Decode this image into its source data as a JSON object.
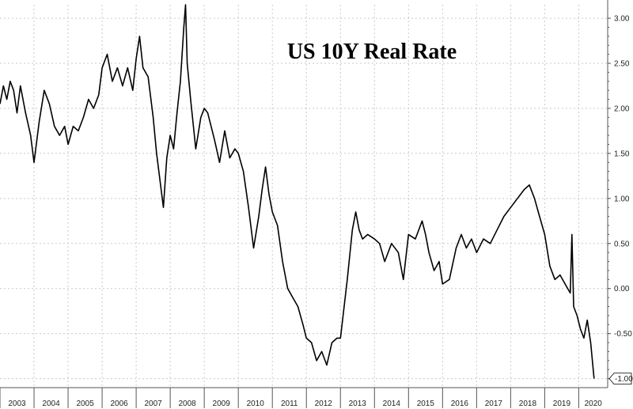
{
  "chart_data": {
    "type": "line",
    "title": "US 10Y Real Rate",
    "xlabel": "",
    "ylabel": "",
    "ylim": [
      -1.0,
      3.0
    ],
    "yticks": [
      3.0,
      2.5,
      2.0,
      1.5,
      1.0,
      0.5,
      0.0,
      -0.5,
      -1.0
    ],
    "ytick_labels": [
      "3.00",
      "2.50",
      "2.00",
      "1.50",
      "1.00",
      "0.50",
      "0.00",
      "-0.50",
      "-1.00"
    ],
    "xtick_labels": [
      "2003",
      "2004",
      "2005",
      "2006",
      "2007",
      "2008",
      "2009",
      "2010",
      "2011",
      "2012",
      "2013",
      "2014",
      "2015",
      "2016",
      "2017",
      "2018",
      "2019",
      "2020"
    ],
    "grid": true,
    "y_axis_side": "right",
    "last_value_label": "-1.00",
    "series": [
      {
        "x": [
          2003.0,
          2003.1,
          2003.2,
          2003.3,
          2003.4,
          2003.5,
          2003.6,
          2003.75,
          2003.9,
          2004.0,
          2004.15,
          2004.3,
          2004.45,
          2004.6,
          2004.75,
          2004.9,
          2005.0,
          2005.15,
          2005.3,
          2005.45,
          2005.6,
          2005.75,
          2005.9,
          2006.0,
          2006.15,
          2006.3,
          2006.45,
          2006.6,
          2006.75,
          2006.9,
          2007.0,
          2007.1,
          2007.2,
          2007.35,
          2007.5,
          2007.6,
          2007.7,
          2007.8,
          2007.9,
          2008.0,
          2008.1,
          2008.2,
          2008.3,
          2008.4,
          2008.45,
          2008.5,
          2008.6,
          2008.75,
          2008.9,
          2009.0,
          2009.1,
          2009.2,
          2009.3,
          2009.45,
          2009.6,
          2009.75,
          2009.9,
          2010.0,
          2010.15,
          2010.3,
          2010.45,
          2010.6,
          2010.7,
          2010.8,
          2010.9,
          2011.0,
          2011.15,
          2011.3,
          2011.45,
          2011.6,
          2011.75,
          2011.9,
          2012.0,
          2012.15,
          2012.3,
          2012.45,
          2012.6,
          2012.75,
          2012.9,
          2013.0,
          2013.2,
          2013.35,
          2013.45,
          2013.55,
          2013.65,
          2013.8,
          2014.0,
          2014.15,
          2014.3,
          2014.5,
          2014.7,
          2014.85,
          2015.0,
          2015.2,
          2015.4,
          2015.5,
          2015.6,
          2015.75,
          2015.9,
          2016.0,
          2016.2,
          2016.4,
          2016.55,
          2016.7,
          2016.85,
          2017.0,
          2017.2,
          2017.4,
          2017.6,
          2017.8,
          2018.0,
          2018.2,
          2018.4,
          2018.55,
          2018.7,
          2018.85,
          2019.0,
          2019.15,
          2019.3,
          2019.45,
          2019.6,
          2019.75,
          2019.8,
          2019.85,
          2019.95,
          2020.05,
          2020.15,
          2020.25,
          2020.35,
          2020.45
        ],
        "y": [
          2.05,
          2.25,
          2.1,
          2.3,
          2.2,
          1.95,
          2.25,
          1.95,
          1.7,
          1.4,
          1.85,
          2.2,
          2.05,
          1.8,
          1.7,
          1.8,
          1.6,
          1.8,
          1.75,
          1.9,
          2.1,
          2.0,
          2.15,
          2.45,
          2.6,
          2.3,
          2.45,
          2.25,
          2.45,
          2.2,
          2.55,
          2.8,
          2.45,
          2.35,
          1.9,
          1.5,
          1.2,
          0.9,
          1.45,
          1.7,
          1.55,
          1.95,
          2.3,
          2.9,
          3.15,
          2.5,
          2.1,
          1.55,
          1.9,
          2.0,
          1.95,
          1.8,
          1.65,
          1.4,
          1.75,
          1.45,
          1.55,
          1.5,
          1.3,
          0.9,
          0.45,
          0.8,
          1.1,
          1.35,
          1.05,
          0.85,
          0.7,
          0.3,
          0.0,
          -0.1,
          -0.2,
          -0.4,
          -0.55,
          -0.6,
          -0.8,
          -0.7,
          -0.85,
          -0.6,
          -0.55,
          -0.55,
          0.1,
          0.65,
          0.85,
          0.65,
          0.55,
          0.6,
          0.55,
          0.5,
          0.3,
          0.5,
          0.4,
          0.1,
          0.6,
          0.55,
          0.75,
          0.6,
          0.4,
          0.2,
          0.3,
          0.05,
          0.1,
          0.45,
          0.6,
          0.45,
          0.55,
          0.4,
          0.55,
          0.5,
          0.65,
          0.8,
          0.9,
          1.0,
          1.1,
          1.15,
          1.0,
          0.8,
          0.6,
          0.25,
          0.1,
          0.15,
          0.05,
          -0.05,
          0.6,
          -0.2,
          -0.3,
          -0.45,
          -0.55,
          -0.35,
          -0.6,
          -1.0
        ]
      }
    ]
  }
}
